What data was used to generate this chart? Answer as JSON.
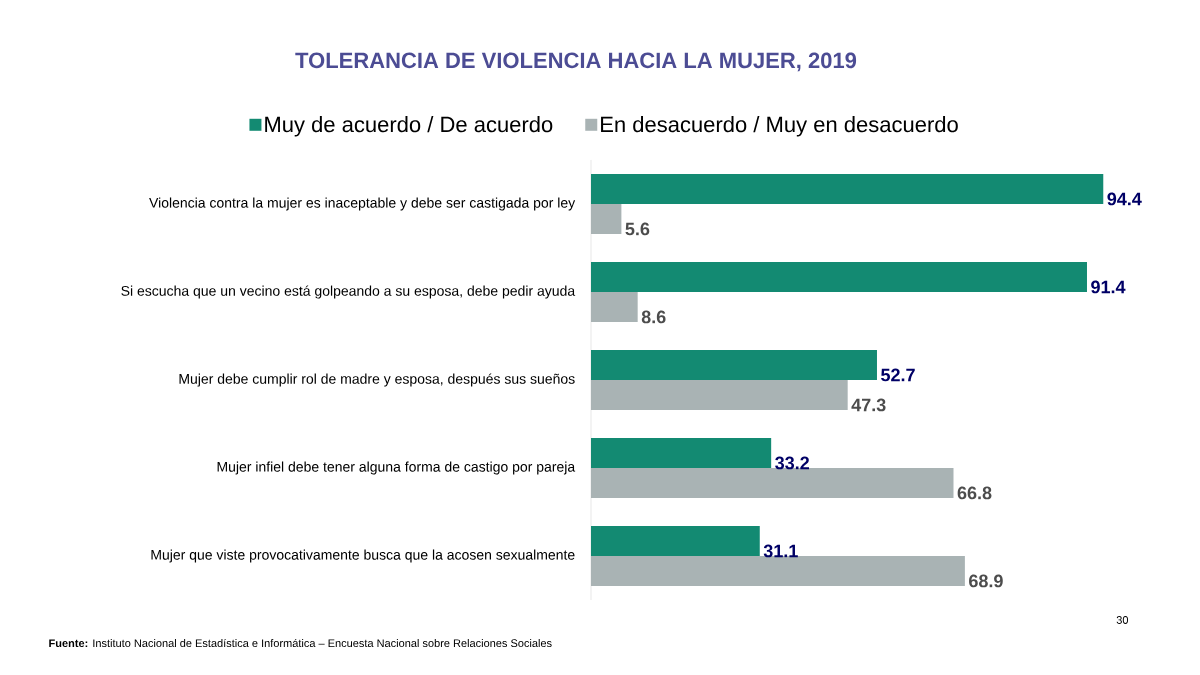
{
  "chart_data": {
    "type": "bar",
    "orientation": "horizontal",
    "title": "TOLERANCIA DE VIOLENCIA HACIA LA MUJER, 2019",
    "categories": [
      "Violencia contra la mujer es inaceptable y debe ser castigada por ley",
      "Si escucha que un vecino está golpeando a su esposa, debe pedir ayuda",
      "Mujer debe cumplir rol de madre y esposa, después sus sueños",
      "Mujer  infiel debe tener alguna forma de castigo por pareja",
      "Mujer que viste provocativamente busca que la acosen sexualmente"
    ],
    "series": [
      {
        "name": "Muy de acuerdo / De acuerdo",
        "color": "#138a72",
        "values": [
          94.4,
          91.4,
          52.7,
          33.2,
          31.1
        ]
      },
      {
        "name": "En desacuerdo / Muy en desacuerdo",
        "color": "#a9b3b4",
        "values": [
          5.6,
          8.6,
          47.3,
          66.8,
          68.9
        ]
      }
    ],
    "data_labels": true,
    "legend": "top",
    "annotations": [
      "**Fuente:** Instituto Nacional de Estadística  e Informática – Encuesta Nacional sobre Relaciones Sociales",
      "30"
    ]
  }
}
